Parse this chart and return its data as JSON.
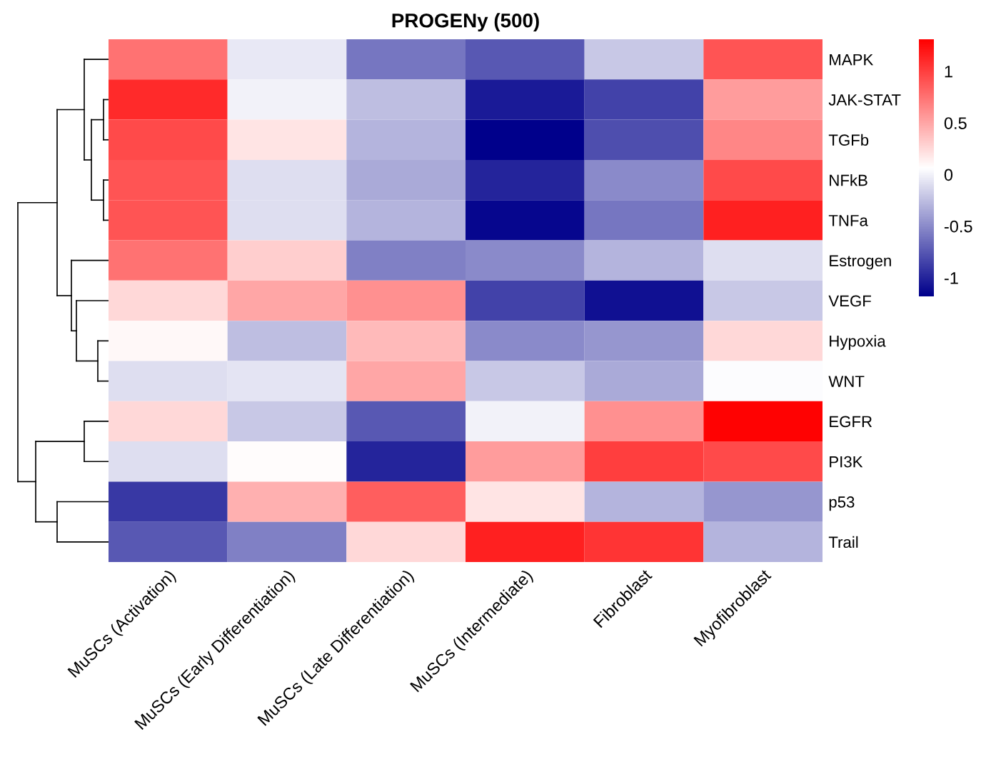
{
  "chart_data": {
    "type": "heatmap",
    "title": "PROGENy (500)",
    "categories": [
      "MuSCs (Activation)",
      "MuSCs (Early Differentiation)",
      "MuSCs (Late Differentiation)",
      "MuSCs (Intermediate)",
      "Fibroblast",
      "Myofibroblast"
    ],
    "y_categories": [
      "MAPK",
      "JAK-STAT",
      "TGFb",
      "NFkB",
      "TNFa",
      "Estrogen",
      "VEGF",
      "Hypoxia",
      "WNT",
      "EGFR",
      "PI3K",
      "p53",
      "Trail"
    ],
    "cells": [
      [
        0.75,
        -0.05,
        -0.6,
        -0.75,
        -0.2,
        0.9
      ],
      [
        1.1,
        0.0,
        -0.25,
        -1.05,
        -0.85,
        0.55
      ],
      [
        0.95,
        0.2,
        -0.3,
        -1.18,
        -0.8,
        0.65
      ],
      [
        0.9,
        -0.1,
        -0.35,
        -1.0,
        -0.5,
        0.95
      ],
      [
        0.9,
        -0.1,
        -0.3,
        -1.15,
        -0.6,
        1.15
      ],
      [
        0.75,
        0.3,
        -0.55,
        -0.5,
        -0.3,
        -0.1
      ],
      [
        0.25,
        0.5,
        0.6,
        -0.85,
        -1.1,
        -0.2
      ],
      [
        0.1,
        -0.25,
        0.4,
        -0.5,
        -0.45,
        0.25
      ],
      [
        -0.1,
        -0.07,
        0.5,
        -0.2,
        -0.35,
        0.05
      ],
      [
        0.25,
        -0.2,
        -0.75,
        0.0,
        0.6,
        1.3
      ],
      [
        -0.1,
        0.08,
        -1.0,
        0.55,
        1.0,
        0.95
      ],
      [
        -0.9,
        0.45,
        0.85,
        0.2,
        -0.3,
        -0.45
      ],
      [
        -0.75,
        -0.55,
        0.25,
        1.15,
        1.05,
        -0.3
      ]
    ],
    "colors": [
      "#00008b",
      "#ffffff",
      "#ff0000"
    ],
    "clim": [
      -1.18,
      1.31
    ],
    "cticks": [
      -1,
      -0.5,
      0,
      0.5,
      1
    ]
  }
}
